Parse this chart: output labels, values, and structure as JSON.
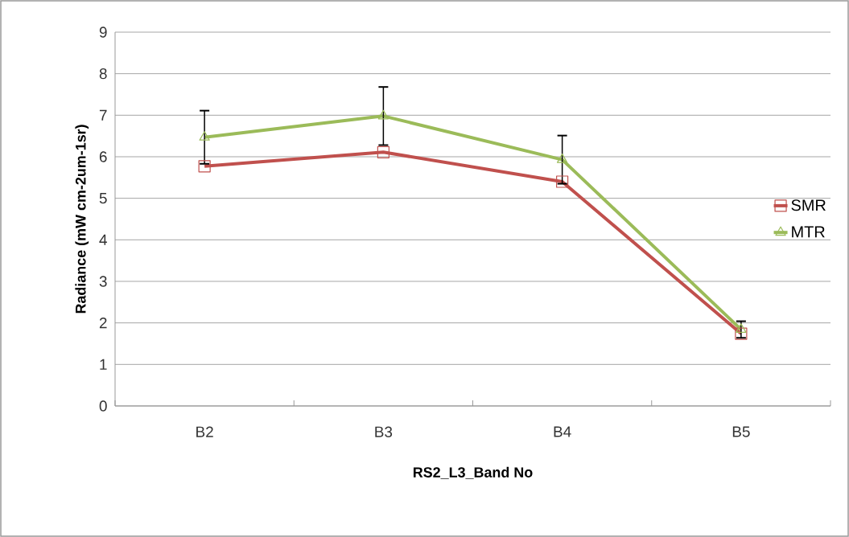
{
  "chart_data": {
    "type": "line",
    "xlabel": "RS2_L3_Band No",
    "ylabel": "Radiance (mW cm-2um-1sr)",
    "categories": [
      "B2",
      "B3",
      "B4",
      "B5"
    ],
    "series": [
      {
        "name": "SMR",
        "color": "#c0504d",
        "marker": "square",
        "values": [
          5.77,
          6.11,
          5.4,
          1.74
        ]
      },
      {
        "name": "MTR",
        "color": "#9bbb59",
        "marker": "triangle",
        "values": [
          6.47,
          6.98,
          5.93,
          1.84
        ],
        "errors": [
          0.64,
          0.7,
          0.58,
          0.2
        ]
      }
    ],
    "ylim": [
      0,
      9
    ],
    "yticks": [
      0,
      1,
      2,
      3,
      4,
      5,
      6,
      7,
      8,
      9
    ],
    "grid": "y",
    "legend": "right"
  }
}
